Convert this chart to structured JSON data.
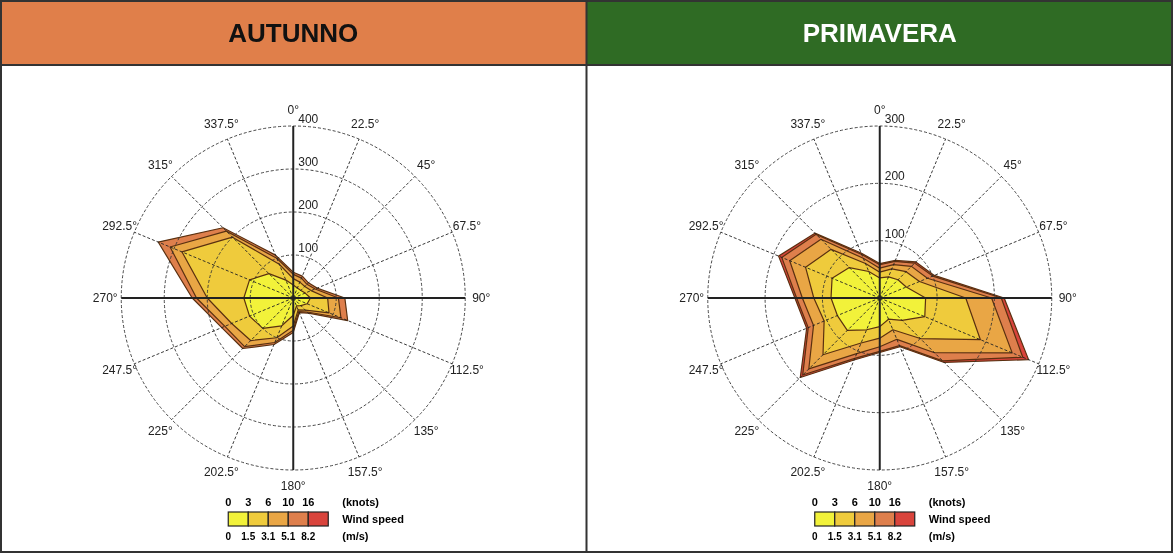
{
  "chart_data": [
    {
      "type": "radar",
      "title": "AUTUNNO",
      "categories": [
        "0°",
        "22.5°",
        "45°",
        "67.5°",
        "90°",
        "112.5°",
        "135°",
        "157.5°",
        "180°",
        "202.5°",
        "225°",
        "247.5°",
        "270°",
        "292.5°",
        "315°",
        "337.5°"
      ],
      "ylim": [
        0,
        400
      ],
      "yticks": [
        100,
        200,
        300,
        400
      ],
      "grid": true,
      "series": [
        {
          "color": "#f2f23a",
          "values": [
            30,
            25,
            25,
            30,
            40,
            35,
            25,
            20,
            40,
            70,
            100,
            110,
            115,
            110,
            80,
            45
          ]
        },
        {
          "color": "#efcb3c",
          "values": [
            45,
            40,
            38,
            45,
            80,
            90,
            40,
            30,
            65,
            100,
            140,
            155,
            200,
            280,
            200,
            85
          ]
        },
        {
          "color": "#e9a645",
          "values": [
            55,
            50,
            45,
            55,
            105,
            120,
            46,
            34,
            75,
            112,
            160,
            172,
            225,
            310,
            220,
            100
          ]
        },
        {
          "color": "#de7f4c",
          "values": [
            60,
            55,
            50,
            60,
            120,
            137,
            50,
            37,
            80,
            117,
            166,
            180,
            235,
            340,
            231,
            108
          ]
        }
      ],
      "annotations": [
        "0",
        "3",
        "6",
        "10",
        "16",
        "(knots)",
        "Wind speed",
        "0",
        "1.5",
        "3.1",
        "5.1",
        "8.2",
        "(m/s)"
      ]
    },
    {
      "type": "radar",
      "title": "PRIMAVERA",
      "categories": [
        "0°",
        "22.5°",
        "45°",
        "67.5°",
        "90°",
        "112.5°",
        "135°",
        "157.5°",
        "180°",
        "202.5°",
        "225°",
        "247.5°",
        "270°",
        "292.5°",
        "315°",
        "337.5°"
      ],
      "ylim": [
        0,
        300
      ],
      "yticks": [
        100,
        200,
        300
      ],
      "grid": true,
      "series": [
        {
          "color": "#f2f23a",
          "values": [
            35,
            40,
            45,
            50,
            80,
            85,
            55,
            40,
            50,
            60,
            80,
            80,
            85,
            90,
            75,
            50
          ]
        },
        {
          "color": "#efcb3c",
          "values": [
            45,
            55,
            65,
            75,
            150,
            190,
            100,
            60,
            70,
            85,
            140,
            105,
            115,
            140,
            120,
            65
          ]
        },
        {
          "color": "#e9a645",
          "values": [
            52,
            63,
            78,
            90,
            195,
            250,
            135,
            78,
            85,
            105,
            175,
            125,
            135,
            170,
            145,
            75
          ]
        },
        {
          "color": "#de7f4c",
          "values": [
            58,
            69,
            86,
            100,
            212,
            270,
            155,
            90,
            93,
            114,
            190,
            135,
            145,
            185,
            157,
            82
          ]
        },
        {
          "color": "#d9443c",
          "values": [
            60,
            71,
            89,
            103,
            217,
            281,
            159,
            92,
            95,
            117,
            196,
            138,
            148,
            191,
            160,
            85
          ]
        }
      ],
      "annotations": [
        "0",
        "3",
        "6",
        "10",
        "16",
        "(knots)",
        "Wind speed",
        "0",
        "1.5",
        "3.1",
        "5.1",
        "8.2",
        "(m/s)"
      ]
    }
  ]
}
